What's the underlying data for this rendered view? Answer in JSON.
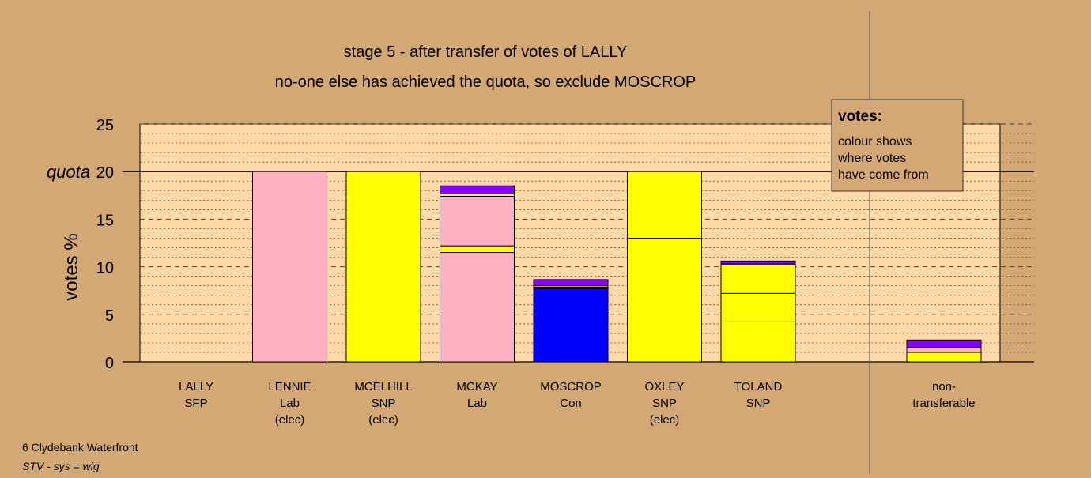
{
  "chart_data": {
    "type": "bar",
    "stacked": true,
    "title": "stage 5 - after transfer of votes of LALLY",
    "subtitle": "no-one else has achieved the quota, so exclude MOSCROP",
    "ylabel": "votes %",
    "quota_label": "quota",
    "ylim": [
      0,
      25
    ],
    "yticks": [
      0,
      5,
      10,
      15,
      20,
      25
    ],
    "quota": 20,
    "colors": {
      "Lab": "#ffb0c0",
      "SNP": "#ffff00",
      "Con": "#0000ff",
      "SFP": "#8800ff"
    },
    "candidates": [
      {
        "name": "LALLY",
        "party": "SFP",
        "status": "",
        "segments": []
      },
      {
        "name": "LENNIE",
        "party": "Lab",
        "status": "(elec)",
        "segments": [
          {
            "from": "Lab",
            "value": 20.0
          }
        ]
      },
      {
        "name": "MCELHILL",
        "party": "SNP",
        "status": "(elec)",
        "segments": [
          {
            "from": "SNP",
            "value": 20.0
          }
        ]
      },
      {
        "name": "MCKAY",
        "party": "Lab",
        "status": "",
        "segments": [
          {
            "from": "Lab",
            "value": 11.5
          },
          {
            "from": "SNP",
            "value": 0.7
          },
          {
            "from": "Lab",
            "value": 5.2
          },
          {
            "from": "SNP",
            "value": 0.25
          },
          {
            "from": "SFP",
            "value": 0.85
          }
        ]
      },
      {
        "name": "MOSCROP",
        "party": "Con",
        "status": "",
        "segments": [
          {
            "from": "Con",
            "value": 7.7
          },
          {
            "from": "Lab",
            "value": 0.15
          },
          {
            "from": "SNP",
            "value": 0.15
          },
          {
            "from": "SFP",
            "value": 0.65
          }
        ]
      },
      {
        "name": "OXLEY",
        "party": "SNP",
        "status": "(elec)",
        "segments": [
          {
            "from": "SNP",
            "value": 13.0
          },
          {
            "from": "SNP",
            "value": 7.0
          }
        ]
      },
      {
        "name": "TOLAND",
        "party": "SNP",
        "status": "",
        "segments": [
          {
            "from": "SNP",
            "value": 4.2
          },
          {
            "from": "SNP",
            "value": 3.0
          },
          {
            "from": "SNP",
            "value": 3.0
          },
          {
            "from": "Lab",
            "value": 0.1
          },
          {
            "from": "SFP",
            "value": 0.3
          }
        ]
      }
    ],
    "non_transferable": {
      "label_line1": "non-",
      "label_line2": "transferable",
      "segments": [
        {
          "from": "SNP",
          "value": 1.0
        },
        {
          "from": "Lab",
          "value": 0.5
        },
        {
          "from": "SFP",
          "value": 0.8
        }
      ]
    },
    "legend": {
      "title": "votes:",
      "lines": [
        "colour shows",
        "where votes",
        "have come from"
      ],
      "placement": "top-right"
    }
  },
  "footer": {
    "area": "6 Clydebank Waterfront",
    "system": "STV - sys = wig"
  }
}
